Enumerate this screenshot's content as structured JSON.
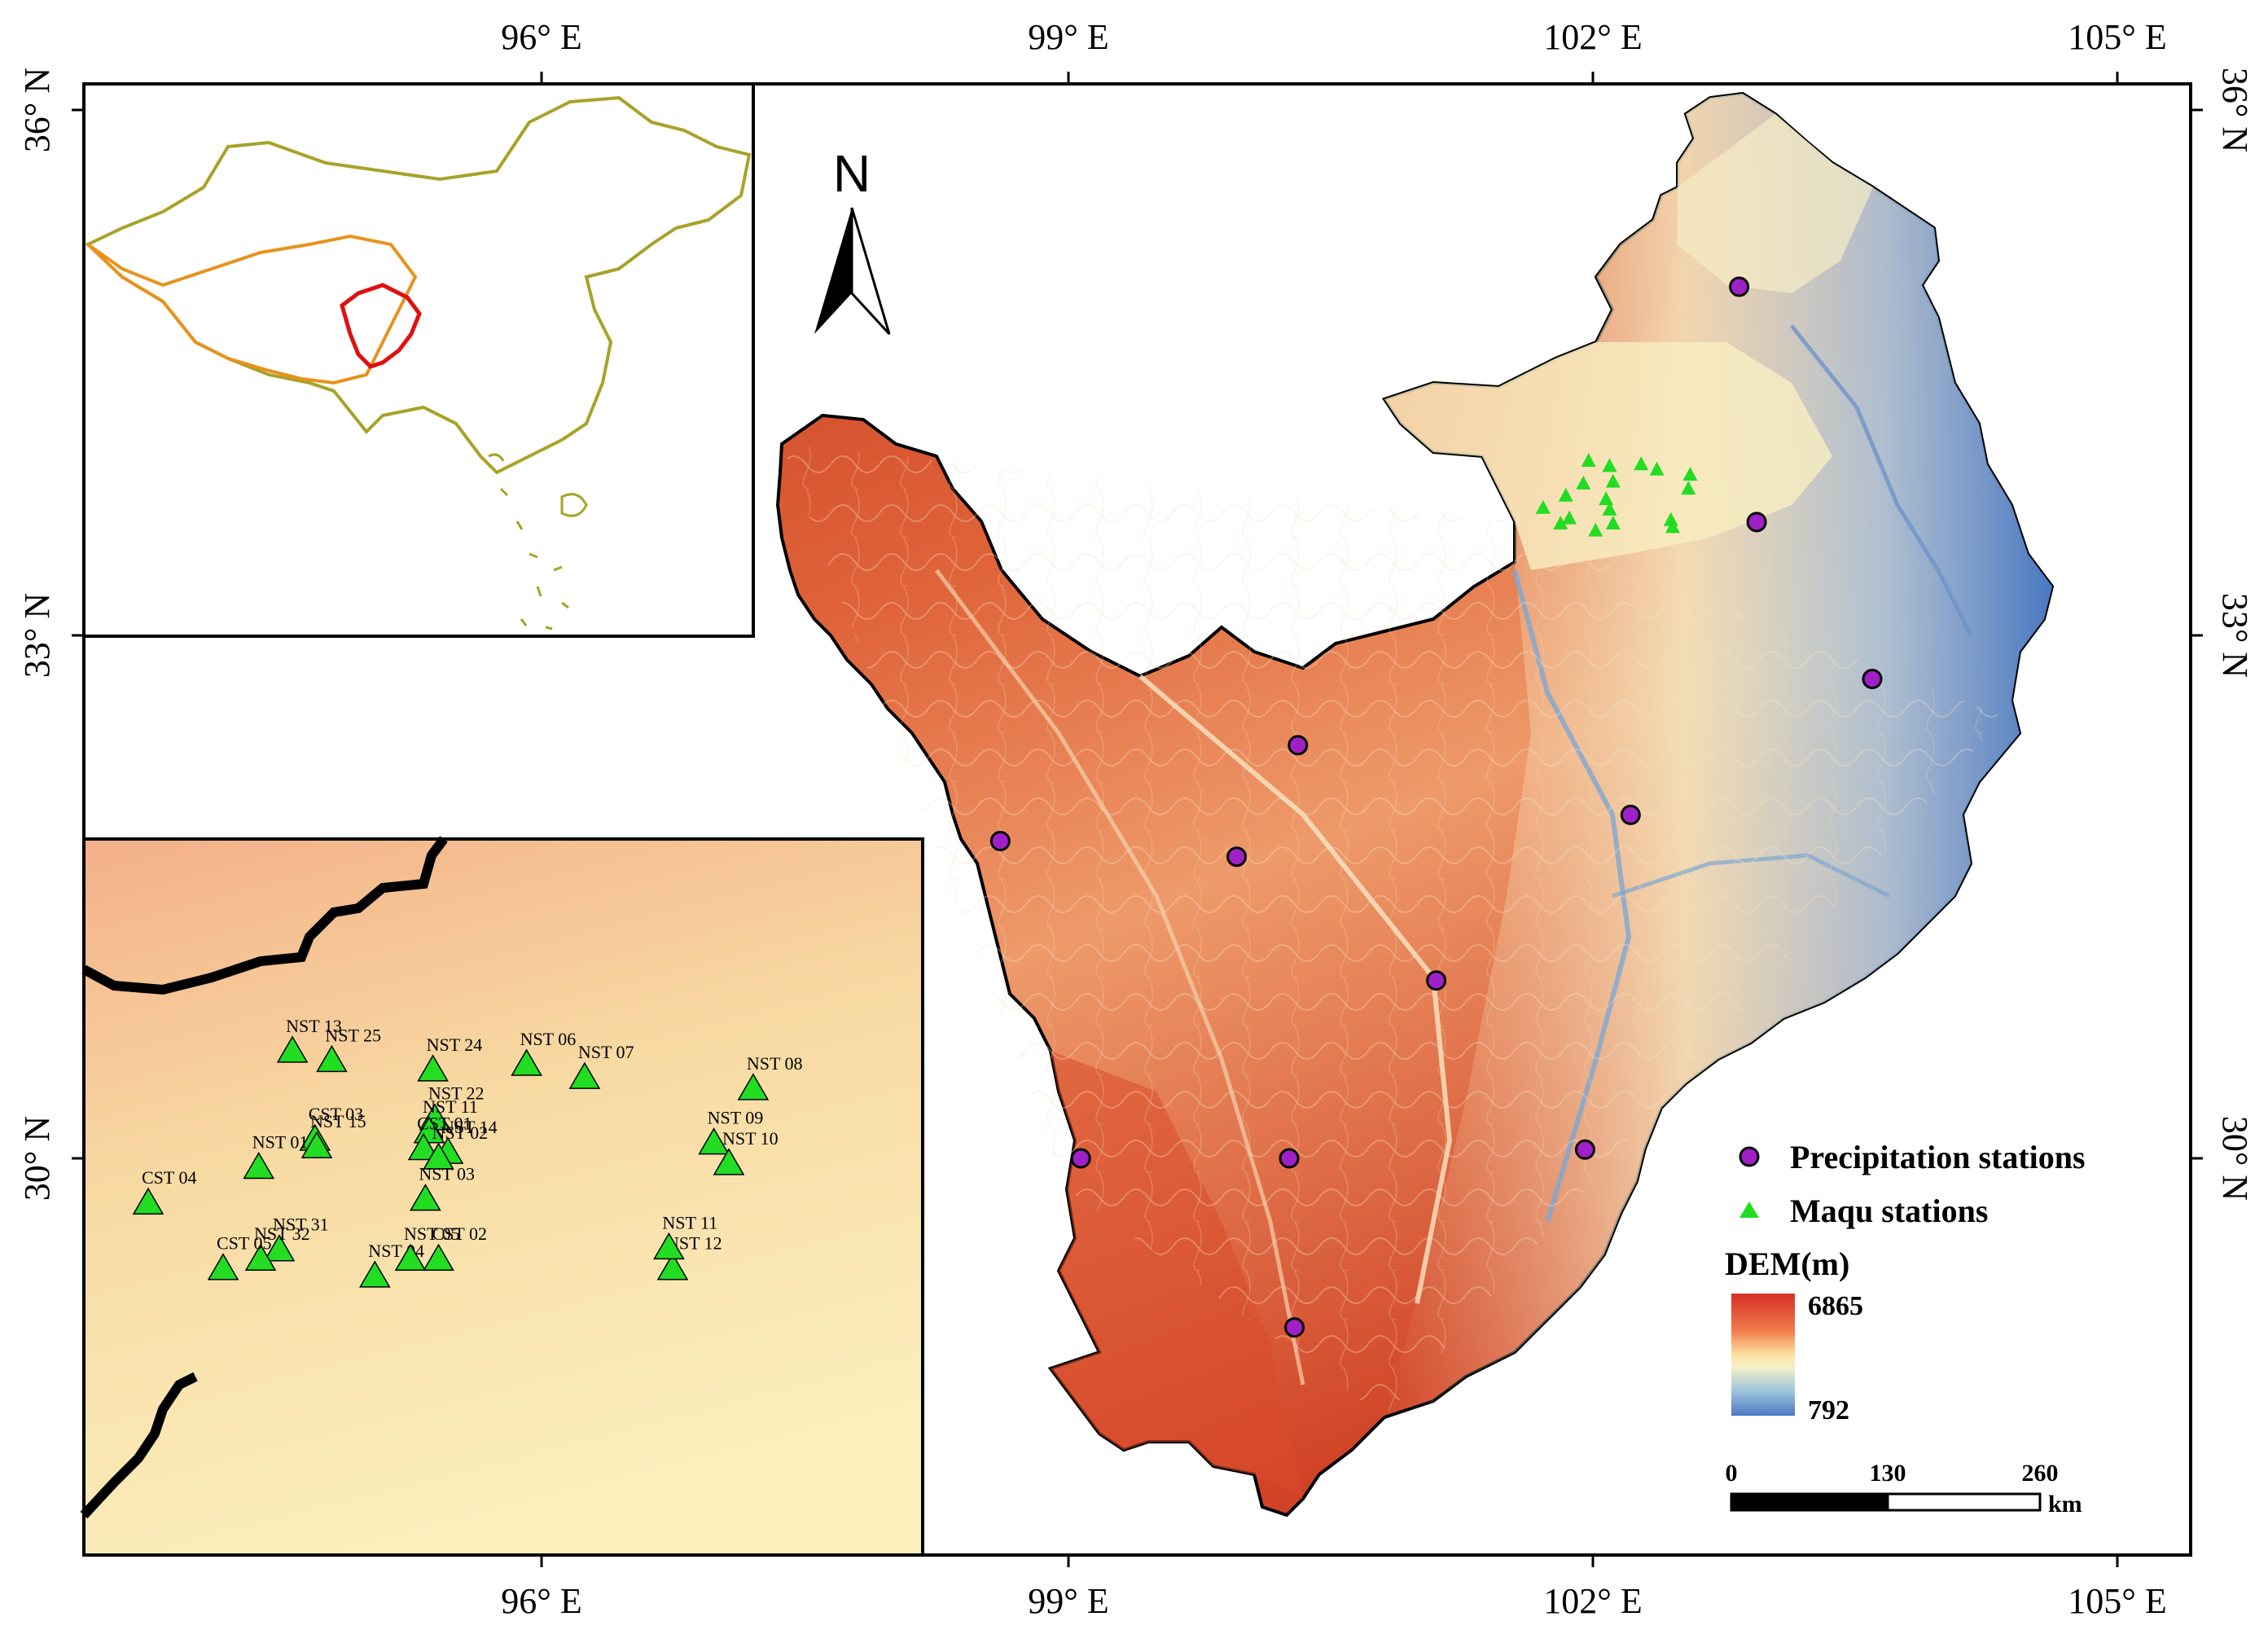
{
  "graticule": {
    "lon_top": [
      "96° E",
      "99° E",
      "102° E",
      "105° E"
    ],
    "lon_bottom": [
      "96° E",
      "99° E",
      "102° E",
      "105° E"
    ],
    "lat_left": [
      "36° N",
      "33° N",
      "30° N"
    ],
    "lat_right": [
      "36° N",
      "33° N",
      "30° N"
    ]
  },
  "north_arrow": {
    "label": "N"
  },
  "legend": {
    "precip_label": "Precipitation stations",
    "maqu_label": "Maqu stations",
    "dem_title": "DEM(m)",
    "dem_max": "6865",
    "dem_min": "792",
    "ramp_colors": [
      "#d73027",
      "#f07b4a",
      "#fde1a2",
      "#f5f0c8",
      "#9ec4dc",
      "#4a78c2"
    ]
  },
  "scale_bar": {
    "ticks": [
      "0",
      "130",
      "260"
    ],
    "unit": "km"
  },
  "colors": {
    "precip_fill": "#a020c8",
    "maqu_fill": "#22dd22",
    "china_outline": "#a8a22a",
    "tibet_outline": "#e8921c",
    "study_outline": "#e01010"
  },
  "precip_stations": [
    {
      "lon": 102.84,
      "lat": 35.0
    },
    {
      "lon": 102.94,
      "lat": 33.65
    },
    {
      "lon": 103.6,
      "lat": 32.75
    },
    {
      "lon": 100.32,
      "lat": 32.37
    },
    {
      "lon": 102.22,
      "lat": 31.97
    },
    {
      "lon": 98.62,
      "lat": 31.82
    },
    {
      "lon": 99.97,
      "lat": 31.73
    },
    {
      "lon": 101.11,
      "lat": 31.02
    },
    {
      "lon": 99.08,
      "lat": 30.0
    },
    {
      "lon": 100.27,
      "lat": 30.0
    },
    {
      "lon": 101.96,
      "lat": 30.05
    },
    {
      "lon": 100.3,
      "lat": 29.03
    }
  ],
  "maqu_map_stations": [
    {
      "lon": 101.98,
      "lat": 34.0
    },
    {
      "lon": 102.1,
      "lat": 33.97
    },
    {
      "lon": 102.28,
      "lat": 33.98
    },
    {
      "lon": 102.37,
      "lat": 33.95
    },
    {
      "lon": 101.95,
      "lat": 33.87
    },
    {
      "lon": 102.12,
      "lat": 33.88
    },
    {
      "lon": 102.56,
      "lat": 33.92
    },
    {
      "lon": 101.85,
      "lat": 33.8
    },
    {
      "lon": 102.08,
      "lat": 33.78
    },
    {
      "lon": 102.55,
      "lat": 33.84
    },
    {
      "lon": 101.72,
      "lat": 33.73
    },
    {
      "lon": 102.1,
      "lat": 33.72
    },
    {
      "lon": 101.87,
      "lat": 33.67
    },
    {
      "lon": 101.82,
      "lat": 33.64
    },
    {
      "lon": 102.12,
      "lat": 33.64
    },
    {
      "lon": 102.45,
      "lat": 33.66
    },
    {
      "lon": 102.02,
      "lat": 33.6
    },
    {
      "lon": 102.46,
      "lat": 33.62
    }
  ],
  "inset_stations": [
    {
      "name": "NST 13",
      "lon": 94.67,
      "lat": 30.57
    },
    {
      "name": "NST 25",
      "lon": 94.88,
      "lat": 30.52
    },
    {
      "name": "NST 24",
      "lon": 95.42,
      "lat": 30.47
    },
    {
      "name": "NST 06",
      "lon": 95.92,
      "lat": 30.5
    },
    {
      "name": "NST 07",
      "lon": 96.23,
      "lat": 30.43
    },
    {
      "name": "NST 08",
      "lon": 97.13,
      "lat": 30.37
    },
    {
      "name": "NST 22",
      "lon": 95.43,
      "lat": 30.21
    },
    {
      "name": "CST 03",
      "lon": 94.79,
      "lat": 30.1
    },
    {
      "name": "NST 11",
      "lon": 95.4,
      "lat": 30.14
    },
    {
      "name": "NST 15",
      "lon": 94.8,
      "lat": 30.06
    },
    {
      "name": "CST 01",
      "lon": 95.37,
      "lat": 30.05
    },
    {
      "name": "NST 14",
      "lon": 95.5,
      "lat": 30.03
    },
    {
      "name": "NST 09",
      "lon": 96.92,
      "lat": 30.08
    },
    {
      "name": "NST 10",
      "lon": 97.0,
      "lat": 29.97
    },
    {
      "name": "NST 02",
      "lon": 95.45,
      "lat": 30.0
    },
    {
      "name": "NST 01",
      "lon": 94.49,
      "lat": 29.95
    },
    {
      "name": "NST 03",
      "lon": 95.38,
      "lat": 29.78
    },
    {
      "name": "CST 04",
      "lon": 93.9,
      "lat": 29.76
    },
    {
      "name": "NST 31",
      "lon": 94.6,
      "lat": 29.51
    },
    {
      "name": "NST 32",
      "lon": 94.5,
      "lat": 29.46
    },
    {
      "name": "CST 02",
      "lon": 95.45,
      "lat": 29.46
    },
    {
      "name": "NST 04",
      "lon": 95.11,
      "lat": 29.37
    },
    {
      "name": "NST 05",
      "lon": 95.3,
      "lat": 29.46
    },
    {
      "name": "CST 05",
      "lon": 94.3,
      "lat": 29.41
    },
    {
      "name": "NST 12",
      "lon": 96.7,
      "lat": 29.41
    },
    {
      "name": "NST 11",
      "lon": 96.68,
      "lat": 29.52
    }
  ]
}
